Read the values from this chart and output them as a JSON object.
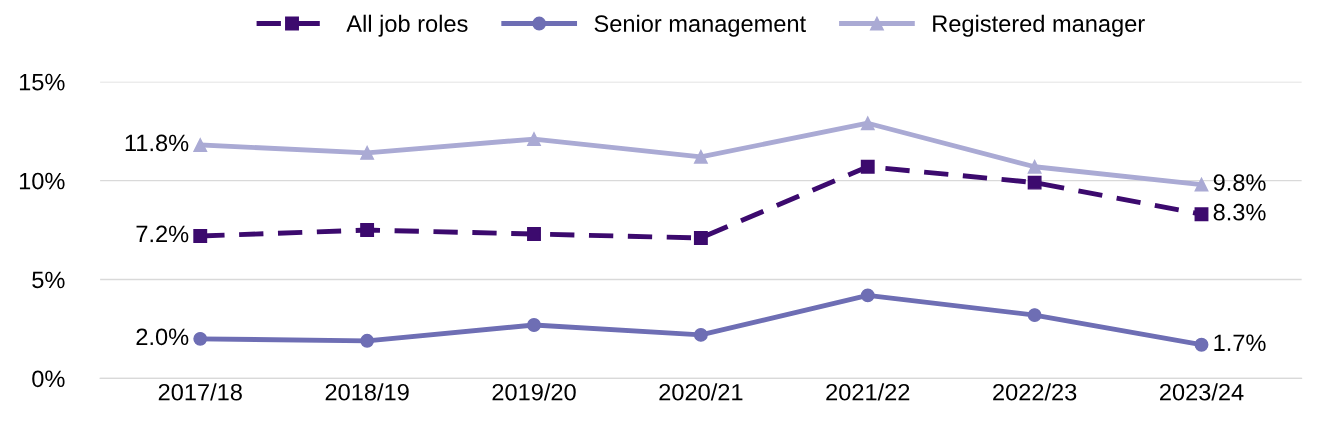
{
  "chart_data": {
    "type": "line",
    "categories": [
      "2017/18",
      "2018/19",
      "2019/20",
      "2020/21",
      "2021/22",
      "2022/23",
      "2023/24"
    ],
    "series": [
      {
        "name": "All job roles",
        "color": "#3c0a6e",
        "marker": "square",
        "line_style": "dashed",
        "values": [
          7.2,
          7.5,
          7.3,
          7.1,
          10.7,
          9.9,
          8.3
        ],
        "value_labels": [
          "7.2%",
          null,
          null,
          null,
          null,
          null,
          "8.3%"
        ]
      },
      {
        "name": "Senior management",
        "color": "#6e6eb4",
        "marker": "circle",
        "line_style": "solid",
        "values": [
          2.0,
          1.9,
          2.7,
          2.2,
          4.2,
          3.2,
          1.7
        ],
        "value_labels": [
          "2.0%",
          null,
          null,
          null,
          null,
          null,
          "1.7%"
        ]
      },
      {
        "name": "Registered manager",
        "color": "#aaaad4",
        "marker": "triangle",
        "line_style": "solid",
        "values": [
          11.8,
          11.4,
          12.1,
          11.2,
          12.9,
          10.7,
          9.8
        ],
        "value_labels": [
          "11.8%",
          null,
          null,
          null,
          null,
          null,
          "9.8%"
        ]
      }
    ],
    "ylim": [
      0,
      15
    ],
    "yticks": [
      {
        "value": 0,
        "label": "0%"
      },
      {
        "value": 5,
        "label": "5%"
      },
      {
        "value": 10,
        "label": "10%"
      },
      {
        "value": 15,
        "label": "15%"
      }
    ],
    "grid": "y",
    "legend": "top"
  }
}
